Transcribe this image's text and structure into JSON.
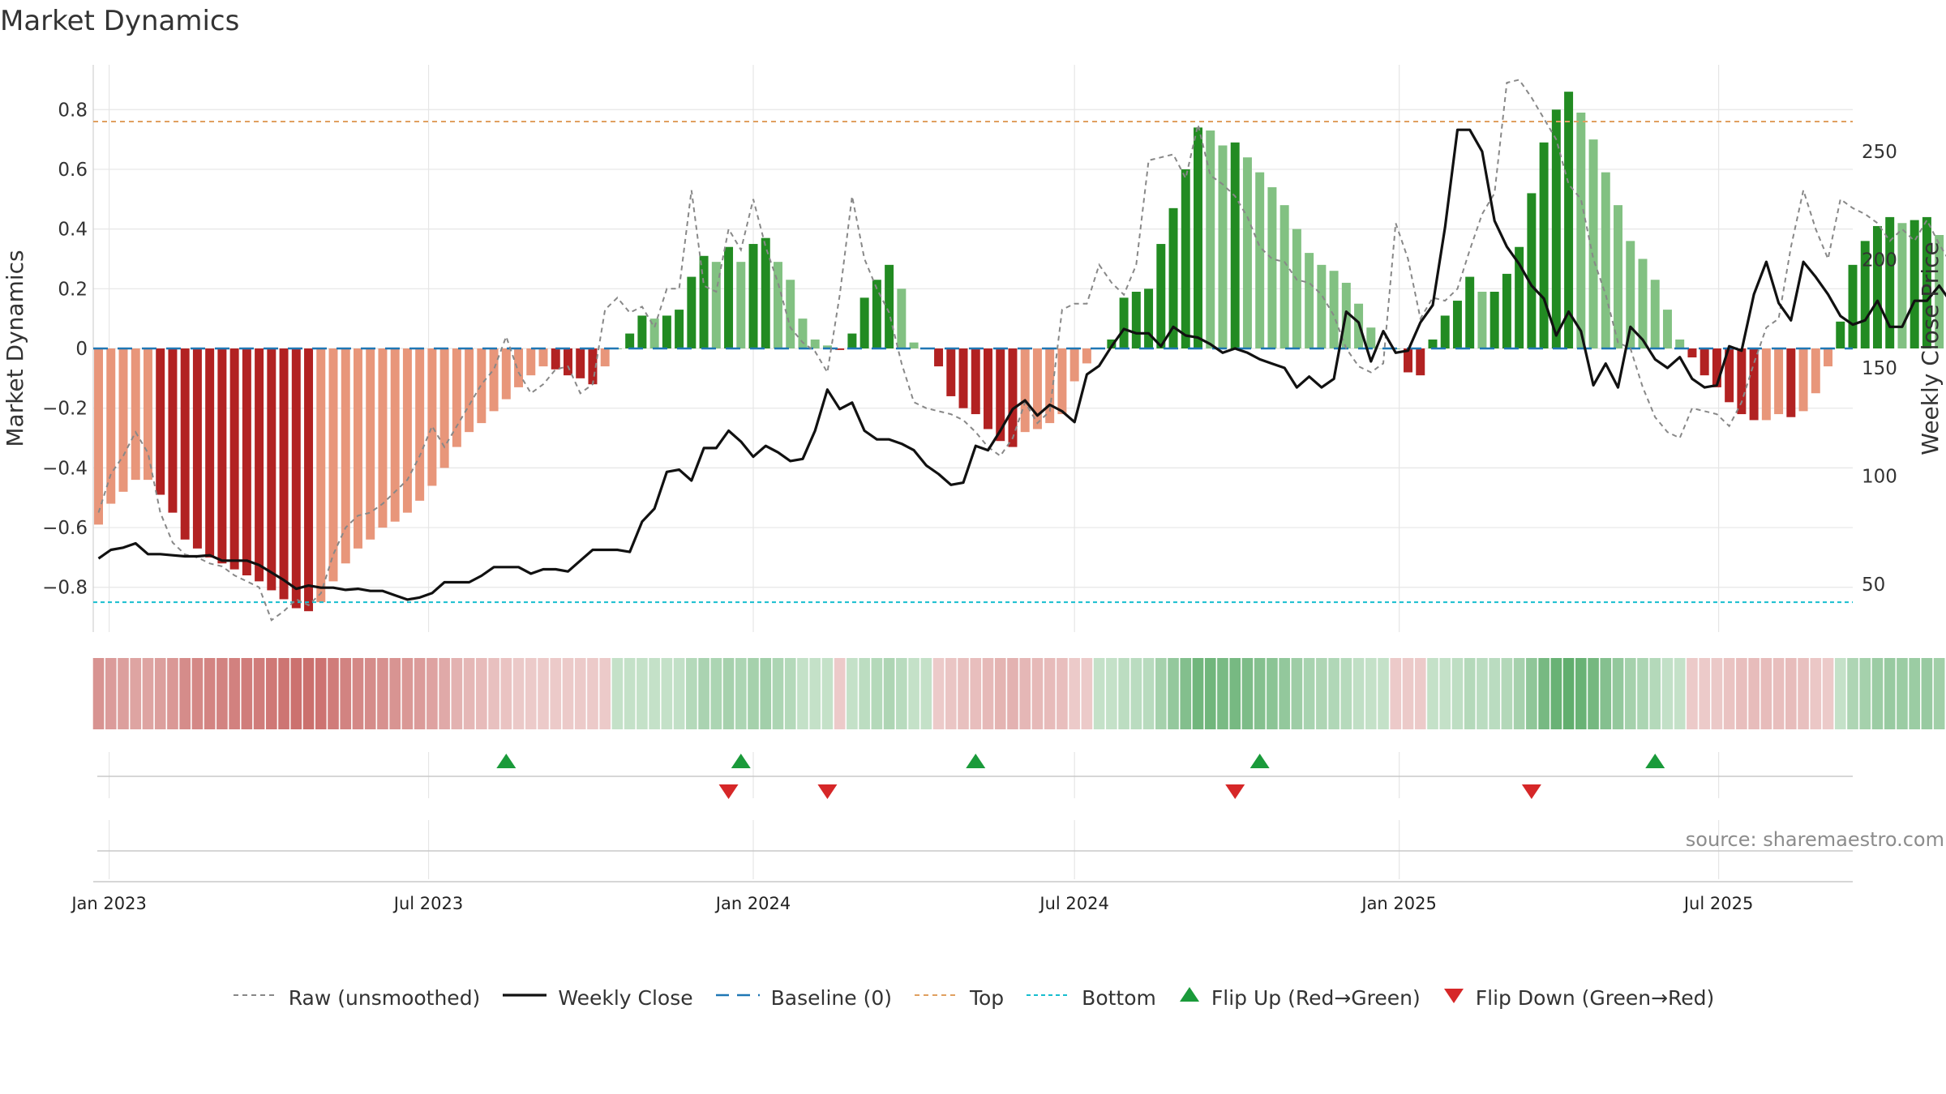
{
  "chart_data": {
    "type": "bar",
    "title": "Market Dynamics",
    "ylabel": "Market Dynamics",
    "y2label": "Weekly Close Price",
    "ylim": [
      -0.95,
      0.95
    ],
    "y2lim": [
      28,
      290
    ],
    "yticks": [
      -0.8,
      -0.6,
      -0.4,
      -0.2,
      0,
      0.2,
      0.4,
      0.6,
      0.8
    ],
    "ytick_labels": [
      "−0.8",
      "−0.6",
      "−0.4",
      "−0.2",
      "0",
      "0.2",
      "0.4",
      "0.6",
      "0.8"
    ],
    "y2ticks": [
      50,
      100,
      150,
      200,
      250
    ],
    "y2tick_labels": [
      "50",
      "100",
      "150",
      "200",
      "250"
    ],
    "x_start": "2022-12-23",
    "x_end": "2025-09-15",
    "x_ticks": [
      {
        "date": "2023-01-01",
        "label": "Jan 2023"
      },
      {
        "date": "2023-07-01",
        "label": "Jul 2023"
      },
      {
        "date": "2024-01-01",
        "label": "Jan 2024"
      },
      {
        "date": "2024-07-01",
        "label": "Jul 2024"
      },
      {
        "date": "2025-01-01",
        "label": "Jan 2025"
      },
      {
        "date": "2025-07-01",
        "label": "Jul 2025"
      }
    ],
    "first_week": "2022-12-26",
    "week_step_days": 7,
    "top_level": 0.76,
    "bottom_level": -0.85,
    "baseline": 0,
    "grid": true,
    "legend_position": "bottom",
    "colors": {
      "strong_red": "#b22222",
      "light_red": "#e8967a",
      "strong_green": "#228b22",
      "light_green": "#82c182",
      "raw": "#888888",
      "close": "#111111",
      "baseline": "#1f77b4",
      "top": "#e0a060",
      "bottom": "#17becf",
      "flip_up": "#1a9a3a",
      "flip_down": "#d62728",
      "heat_red": "#c0504d",
      "heat_green": "#3a9a4a",
      "grid": "#e6e6e6"
    },
    "series": [
      {
        "name": "Market Dynamics (smoothed)",
        "values": [
          -0.59,
          -0.52,
          -0.48,
          -0.44,
          -0.44,
          -0.49,
          -0.55,
          -0.64,
          -0.67,
          -0.7,
          -0.72,
          -0.74,
          -0.76,
          -0.78,
          -0.81,
          -0.84,
          -0.87,
          -0.88,
          -0.85,
          -0.78,
          -0.72,
          -0.67,
          -0.64,
          -0.6,
          -0.58,
          -0.55,
          -0.51,
          -0.46,
          -0.4,
          -0.33,
          -0.28,
          -0.25,
          -0.21,
          -0.17,
          -0.13,
          -0.09,
          -0.06,
          -0.07,
          -0.09,
          -0.1,
          -0.12,
          -0.06,
          0.0,
          0.05,
          0.11,
          0.1,
          0.11,
          0.13,
          0.24,
          0.31,
          0.29,
          0.34,
          0.29,
          0.35,
          0.37,
          0.29,
          0.23,
          0.1,
          0.03,
          0.01,
          -0.005,
          0.05,
          0.17,
          0.23,
          0.28,
          0.2,
          0.02,
          0.0,
          -0.06,
          -0.16,
          -0.2,
          -0.22,
          -0.27,
          -0.31,
          -0.33,
          -0.28,
          -0.27,
          -0.25,
          -0.22,
          -0.11,
          -0.05,
          0.0,
          0.03,
          0.17,
          0.19,
          0.2,
          0.35,
          0.47,
          0.6,
          0.74,
          0.73,
          0.68,
          0.69,
          0.64,
          0.59,
          0.54,
          0.48,
          0.4,
          0.32,
          0.28,
          0.26,
          0.22,
          0.15,
          0.07,
          0.0,
          0.0,
          -0.08,
          -0.09,
          0.03,
          0.11,
          0.16,
          0.24,
          0.19,
          0.19,
          0.25,
          0.34,
          0.52,
          0.69,
          0.8,
          0.86,
          0.79,
          0.7,
          0.59,
          0.48,
          0.36,
          0.3,
          0.23,
          0.13,
          0.03,
          -0.03,
          -0.09,
          -0.13,
          -0.18,
          -0.22,
          -0.24,
          -0.24,
          -0.22,
          -0.23,
          -0.21,
          -0.15,
          -0.06,
          0.09,
          0.28,
          0.36,
          0.41,
          0.44,
          0.42,
          0.43,
          0.44,
          0.38,
          0.35,
          0.35,
          0.32,
          0.28,
          0.28,
          0.22,
          0.25,
          0.27
        ]
      },
      {
        "name": "Raw (unsmoothed)",
        "values": [
          -0.55,
          -0.42,
          -0.36,
          -0.28,
          -0.35,
          -0.55,
          -0.65,
          -0.69,
          -0.7,
          -0.72,
          -0.73,
          -0.76,
          -0.78,
          -0.8,
          -0.91,
          -0.88,
          -0.84,
          -0.86,
          -0.82,
          -0.69,
          -0.6,
          -0.56,
          -0.55,
          -0.52,
          -0.48,
          -0.44,
          -0.36,
          -0.26,
          -0.33,
          -0.26,
          -0.19,
          -0.12,
          -0.07,
          0.04,
          -0.08,
          -0.15,
          -0.12,
          -0.07,
          -0.06,
          -0.15,
          -0.12,
          0.13,
          0.17,
          0.12,
          0.14,
          0.07,
          0.2,
          0.2,
          0.53,
          0.21,
          0.19,
          0.4,
          0.33,
          0.5,
          0.34,
          0.22,
          0.07,
          0.02,
          -0.01,
          -0.08,
          0.18,
          0.51,
          0.3,
          0.2,
          0.12,
          -0.05,
          -0.18,
          -0.2,
          -0.21,
          -0.22,
          -0.24,
          -0.28,
          -0.33,
          -0.36,
          -0.3,
          -0.18,
          -0.25,
          -0.21,
          0.13,
          0.15,
          0.15,
          0.28,
          0.22,
          0.18,
          0.28,
          0.63,
          0.64,
          0.65,
          0.57,
          0.75,
          0.58,
          0.55,
          0.51,
          0.44,
          0.34,
          0.3,
          0.29,
          0.23,
          0.22,
          0.18,
          0.11,
          0.0,
          -0.06,
          -0.08,
          -0.05,
          0.42,
          0.3,
          0.1,
          0.17,
          0.16,
          0.2,
          0.33,
          0.45,
          0.52,
          0.89,
          0.9,
          0.84,
          0.77,
          0.7,
          0.55,
          0.5,
          0.3,
          0.18,
          0.02,
          0.0,
          -0.13,
          -0.23,
          -0.28,
          -0.3,
          -0.2,
          -0.21,
          -0.22,
          -0.26,
          -0.18,
          -0.05,
          0.07,
          0.1,
          0.34,
          0.53,
          0.4,
          0.3,
          0.5,
          0.47,
          0.45,
          0.42,
          0.36,
          0.4,
          0.36,
          0.43,
          0.35,
          0.28,
          0.28,
          0.27,
          0.24,
          0.35,
          0.2
        ]
      },
      {
        "name": "Weekly Close",
        "values": [
          62,
          66,
          67,
          69,
          64,
          64,
          63.5,
          63,
          63,
          63.5,
          61,
          61,
          61,
          59,
          55.5,
          52,
          48,
          49.5,
          48.5,
          48.5,
          47.5,
          48,
          47,
          47,
          45,
          43,
          44,
          46,
          51,
          51,
          51,
          54,
          58,
          58,
          58,
          55,
          57,
          57,
          56,
          61,
          66,
          66,
          66,
          65,
          79,
          85,
          102,
          103,
          98,
          113,
          113,
          121,
          116,
          109,
          114,
          111,
          107,
          108,
          121,
          140,
          131,
          134,
          121,
          117,
          117,
          115,
          112,
          105,
          101,
          96,
          97,
          114,
          112,
          121,
          131,
          135,
          128,
          133,
          130,
          125,
          147,
          151,
          160,
          168,
          166,
          166,
          160,
          169,
          165,
          164,
          161,
          157,
          159,
          157,
          154,
          152,
          150,
          141,
          146,
          141,
          145,
          176,
          171,
          153,
          167,
          157,
          158,
          171,
          179,
          215,
          260,
          260,
          250,
          218,
          206,
          198,
          188,
          182,
          165,
          176,
          167,
          142,
          152,
          141,
          169,
          163,
          154,
          150,
          155,
          145,
          141,
          142,
          160,
          158,
          184,
          199,
          180,
          172,
          199,
          192,
          184,
          174,
          170,
          172,
          181,
          169,
          169,
          181,
          181,
          188,
          180
        ]
      }
    ],
    "heatmap_values": [
      -0.59,
      -0.52,
      -0.48,
      -0.44,
      -0.44,
      -0.49,
      -0.55,
      -0.64,
      -0.67,
      -0.7,
      -0.72,
      -0.74,
      -0.76,
      -0.78,
      -0.81,
      -0.84,
      -0.87,
      -0.88,
      -0.85,
      -0.78,
      -0.72,
      -0.67,
      -0.64,
      -0.6,
      -0.58,
      -0.55,
      -0.51,
      -0.46,
      -0.4,
      -0.33,
      -0.28,
      -0.25,
      -0.21,
      -0.17,
      -0.13,
      -0.09,
      -0.06,
      -0.07,
      -0.09,
      -0.1,
      -0.12,
      -0.06,
      0.05,
      0.05,
      0.11,
      0.1,
      0.11,
      0.13,
      0.24,
      0.31,
      0.29,
      0.34,
      0.29,
      0.35,
      0.37,
      0.29,
      0.23,
      0.1,
      0.03,
      0.01,
      -0.02,
      0.05,
      0.17,
      0.23,
      0.28,
      0.2,
      0.02,
      0.01,
      -0.06,
      -0.16,
      -0.2,
      -0.22,
      -0.27,
      -0.31,
      -0.33,
      -0.28,
      -0.27,
      -0.25,
      -0.22,
      -0.11,
      -0.05,
      0.01,
      0.03,
      0.17,
      0.19,
      0.2,
      0.35,
      0.47,
      0.6,
      0.74,
      0.73,
      0.68,
      0.69,
      0.64,
      0.59,
      0.54,
      0.48,
      0.4,
      0.32,
      0.28,
      0.26,
      0.22,
      0.15,
      0.07,
      0.02,
      -0.02,
      -0.08,
      -0.09,
      0.03,
      0.11,
      0.16,
      0.24,
      0.19,
      0.19,
      0.25,
      0.34,
      0.52,
      0.69,
      0.8,
      0.86,
      0.79,
      0.7,
      0.59,
      0.48,
      0.36,
      0.3,
      0.23,
      0.13,
      0.03,
      -0.03,
      -0.09,
      -0.13,
      -0.18,
      -0.22,
      -0.24,
      -0.24,
      -0.22,
      -0.23,
      -0.21,
      -0.15,
      -0.06,
      0.09,
      0.28,
      0.36,
      0.41,
      0.44,
      0.42,
      0.43,
      0.44,
      0.38,
      0.35,
      0.35,
      0.32,
      0.28,
      0.28,
      0.22,
      0.25,
      0.27
    ],
    "flips_up": [
      "2023-08-14",
      "2023-12-25",
      "2024-07-01",
      "2024-11-18",
      "2025-06-02"
    ],
    "flips_up_dates_note": "",
    "flips_up_actual": [
      "2023-08-14",
      "2023-12-25",
      "2024-05-06",
      "2024-10-14",
      "2025-05-26"
    ],
    "flips_down": [
      "2023-12-18",
      "2024-02-12",
      "2024-09-30",
      "2025-03-17"
    ],
    "source": "source: sharemaestro.com",
    "legend": [
      {
        "key": "raw",
        "label": "Raw (unsmoothed)"
      },
      {
        "key": "close",
        "label": "Weekly Close"
      },
      {
        "key": "baseline",
        "label": "Baseline (0)"
      },
      {
        "key": "top",
        "label": "Top"
      },
      {
        "key": "bottom",
        "label": "Bottom"
      },
      {
        "key": "flip_up",
        "label": "Flip Up (Red→Green)"
      },
      {
        "key": "flip_down",
        "label": "Flip Down (Green→Red)"
      }
    ]
  }
}
